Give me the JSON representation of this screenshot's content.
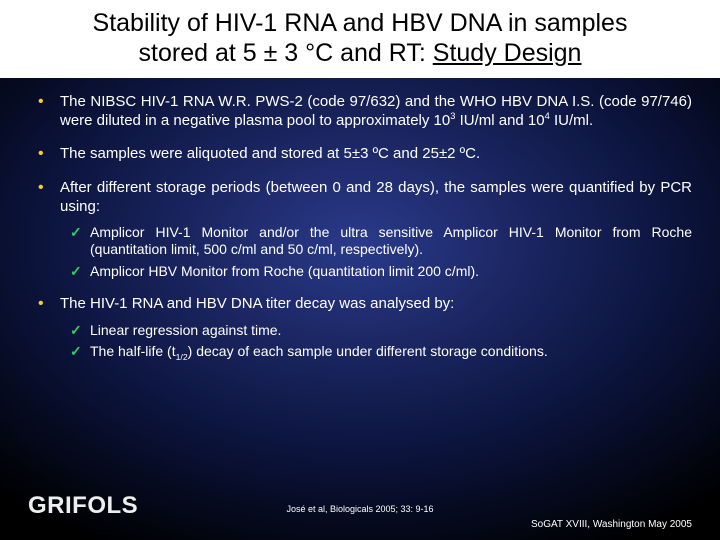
{
  "title": {
    "line1": "Stability of HIV-1 RNA and HBV DNA in samples",
    "line2_a": "stored at 5 ± 3 °C and RT: ",
    "line2_b": "Study Design"
  },
  "bullets": {
    "b1_a": "The NIBSC HIV-1 RNA W.R. PWS-2 (code 97/632) and the WHO HBV DNA I.S. (code 97/746) were diluted in a negative plasma pool to approximately 10",
    "b1_sup1": "3",
    "b1_b": " IU/ml and 10",
    "b1_sup2": "4",
    "b1_c": " IU/ml.",
    "b2": "The samples were aliquoted and stored at 5±3 ºC and 25±2 ºC.",
    "b3": "After different storage periods (between 0 and 28 days), the samples were quantified by PCR using:",
    "b3_sub1": "Amplicor HIV-1 Monitor and/or the ultra sensitive Amplicor HIV-1 Monitor from Roche (quantitation limit, 500 c/ml and 50 c/ml, respectively).",
    "b3_sub2": "Amplicor HBV Monitor from Roche (quantitation limit 200 c/ml).",
    "b4": "The HIV-1 RNA and HBV DNA titer decay was analysed by:",
    "b4_sub1": "Linear regression against time.",
    "b4_sub2_a": "The half-life (t",
    "b4_sub2_sub": "1/2",
    "b4_sub2_b": ") decay of each sample under different storage conditions."
  },
  "logo": "GRIFOLS",
  "citation": "José et al, Biologicals 2005; 33: 9-16",
  "footer_right": "SoGAT XVIII, Washington  May 2005",
  "colors": {
    "bullet": "#ffcc33",
    "check": "#33cc66",
    "title_bg": "#ffffff",
    "title_fg": "#000000",
    "body_fg": "#ffffff"
  }
}
